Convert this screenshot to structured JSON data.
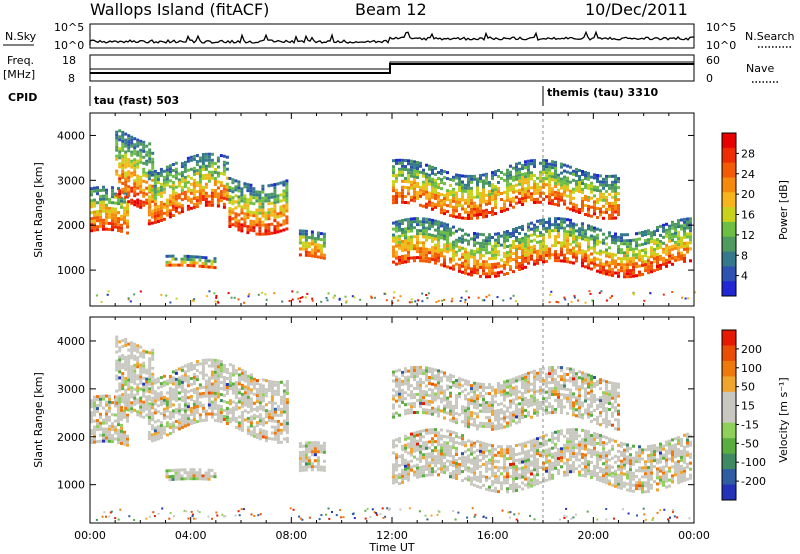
{
  "header": {
    "station": "Wallops Island (fitACF)",
    "beam": "Beam 12",
    "date": "10/Dec/2011"
  },
  "strip_noise": {
    "left_label": "N.Sky",
    "right_label": "N.Search",
    "left_ticks": [
      "10^5",
      "10^0"
    ],
    "right_ticks": [
      "10^5",
      "10^0"
    ]
  },
  "strip_freq": {
    "left_label": "Freq.",
    "left_unit": "[MHz]",
    "left_ticks": [
      "18",
      "8"
    ],
    "right_label": "Nave",
    "right_ticks": [
      "60",
      "0"
    ]
  },
  "cpid": {
    "label": "CPID",
    "modes": [
      {
        "name": "tau (fast) 503",
        "start_hour": 0
      },
      {
        "name": "themis (tau) 3310",
        "start_hour": 18
      }
    ]
  },
  "colors": {
    "power": [
      "#1f28d4",
      "#2d52b0",
      "#357a8a",
      "#4f9a5e",
      "#6dbf44",
      "#c9d21a",
      "#f6b51a",
      "#f58a0c",
      "#f25a06",
      "#ee2b02",
      "#e80000"
    ],
    "velocity": [
      "#2432b8",
      "#2f5da2",
      "#3f8a63",
      "#5aae3f",
      "#8fd05b",
      "#c8c8c0",
      "#c8c8c0",
      "#f0a52e",
      "#ee7a0c",
      "#ea4e04",
      "#e61a00"
    ]
  },
  "chart_data": [
    {
      "type": "heatmap",
      "name": "power",
      "title": "",
      "xlabel": "",
      "ylabel": "Slant Range [km]",
      "ylim": [
        200,
        4500
      ],
      "xlim": [
        0,
        24
      ],
      "y_ticks": [
        1000,
        2000,
        3000,
        4000
      ],
      "colorbar": {
        "label": "Power [dB]",
        "ticks": [
          "28",
          "24",
          "20",
          "16",
          "12",
          "8",
          "4"
        ]
      },
      "echo_bands": [
        {
          "x_start": 0.0,
          "x_end": 1.5,
          "y_low": 1700,
          "y_high": 2700
        },
        {
          "x_start": 1.0,
          "x_end": 2.5,
          "y_low": 2600,
          "y_high": 4100
        },
        {
          "x_start": 2.3,
          "x_end": 5.5,
          "y_low": 2200,
          "y_high": 3400
        },
        {
          "x_start": 5.5,
          "x_end": 7.8,
          "y_low": 2000,
          "y_high": 3100
        },
        {
          "x_start": 3.0,
          "x_end": 5.0,
          "y_low": 1050,
          "y_high": 1300
        },
        {
          "x_start": 8.3,
          "x_end": 9.3,
          "y_low": 1200,
          "y_high": 1800
        },
        {
          "x_start": 12.0,
          "x_end": 23.9,
          "y_low": 1000,
          "y_high": 2000
        },
        {
          "x_start": 12.0,
          "x_end": 21.0,
          "y_low": 2300,
          "y_high": 3300
        }
      ]
    },
    {
      "type": "heatmap",
      "name": "velocity",
      "title": "",
      "xlabel": "Time UT",
      "ylabel": "Slant Range [km]",
      "ylim": [
        200,
        4500
      ],
      "xlim": [
        0,
        24
      ],
      "y_ticks": [
        1000,
        2000,
        3000,
        4000
      ],
      "x_ticks": [
        "00:00",
        "04:00",
        "08:00",
        "12:00",
        "16:00",
        "20:00",
        "00:00"
      ],
      "colorbar": {
        "label": "Velocity [m s⁻¹]",
        "ticks": [
          "200",
          "100",
          "50",
          "15",
          "-15",
          "-50",
          "-100",
          "-200"
        ]
      },
      "echo_bands": [
        {
          "x_start": 0.0,
          "x_end": 1.5,
          "y_low": 1700,
          "y_high": 2700
        },
        {
          "x_start": 1.0,
          "x_end": 2.5,
          "y_low": 2600,
          "y_high": 4100
        },
        {
          "x_start": 2.3,
          "x_end": 7.8,
          "y_low": 2100,
          "y_high": 3400
        },
        {
          "x_start": 3.0,
          "x_end": 5.0,
          "y_low": 1050,
          "y_high": 1300
        },
        {
          "x_start": 8.3,
          "x_end": 9.3,
          "y_low": 1200,
          "y_high": 1800
        },
        {
          "x_start": 12.0,
          "x_end": 23.9,
          "y_low": 1000,
          "y_high": 2000
        },
        {
          "x_start": 12.0,
          "x_end": 21.0,
          "y_low": 2300,
          "y_high": 3300
        }
      ]
    }
  ]
}
